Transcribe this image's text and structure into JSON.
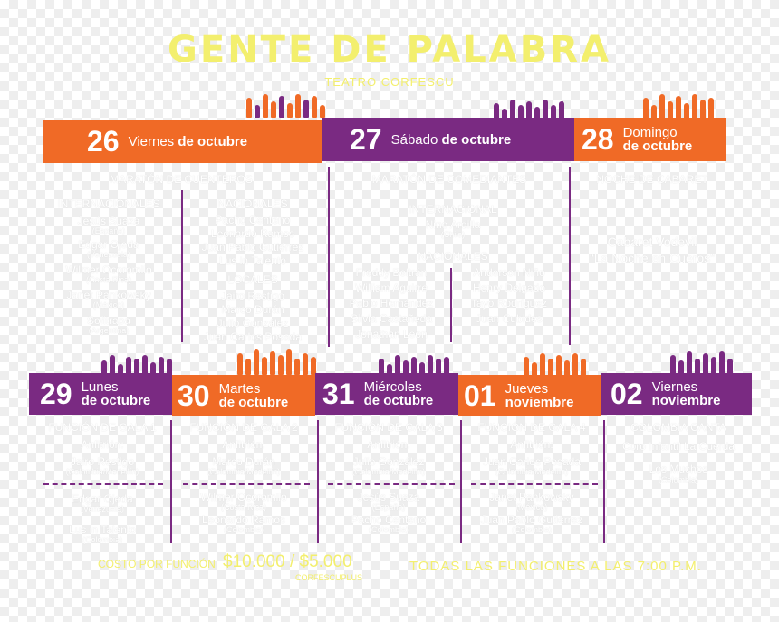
{
  "title": "GENTE DE PALABRA",
  "subtitle": "TEATRO CORFESCU",
  "banners": {
    "d26": {
      "num": "26",
      "weekday": "Viernes",
      "month": "de octubre"
    },
    "d27": {
      "num": "27",
      "weekday": "Sábado",
      "month": "de octubre"
    },
    "d28": {
      "num": "28",
      "weekday": "Domingo",
      "month": "de octubre"
    },
    "d29": {
      "num": "29",
      "weekday": "Lunes",
      "month": "de octubre"
    },
    "d30": {
      "num": "30",
      "weekday": "Martes",
      "month": "de octubre"
    },
    "d31": {
      "num": "31",
      "weekday": "Miércoles",
      "month": "de octubre"
    },
    "d01": {
      "num": "01",
      "weekday": "Jueves",
      "month": "noviembre"
    },
    "d02": {
      "num": "02",
      "weekday": "Viernes",
      "month": "noviembre"
    }
  },
  "day26": {
    "header": "MARATÓN DE CUENTEROS",
    "internacionales_label": "INTERNACIONALES",
    "internacionales": [
      {
        "name": "Jesús Suaza",
        "country": "(España)"
      },
      {
        "name": "Edgar Ojeda",
        "country": "(Venezuela)"
      },
      {
        "name": "Wilmer Ocoromilo",
        "country": "(Costa Rica)"
      },
      {
        "name": "Janet Pankowsky",
        "country": "(México)"
      },
      {
        "name": "Sofitrapa",
        "country": "(Argentina)"
      }
    ],
    "nacionales_label": "NACIONALES",
    "nacionales": [
      "Pacho Centeno",
      "Leonardo Ramos",
      "Juan Pablo Gutiérrez",
      "Lus in Talento"
    ],
    "locales_label": "LOCALES",
    "locales": [
      "Jairo Restigo",
      "Marco Durán",
      "Julio González",
      "Juan Carlos Posada"
    ]
  },
  "day27": {
    "header": "MARATÓN DE COMEDIANTES",
    "internacional_label": "INTERNACIONAL",
    "internacional": {
      "name": "Nino Ardilla",
      "country": "(Chile)"
    },
    "nacionales_label": "NACIONALES",
    "col1": [
      "Freddy Beltrán",
      "William Aguirre",
      "Pablo Hernández",
      "Silvia Castañeda",
      "Jonathan Leon"
    ],
    "col2": [
      "Anderson Niño",
      "Henry Delgado",
      "Tayo Rodríguez",
      "Juan Cubides"
    ]
  },
  "day28": {
    "header": "NOCHE DE CABARET",
    "line1": "Cabaret Vodevil",
    "line2": "“La Noche en Cueros”"
  },
  "day29": {
    "header": "FUNCIÓN DE GALA 1",
    "sub": "Anfitrión:",
    "host": {
      "name": "Jairo Restigo",
      "country": "(Colombia/Medellín)"
    },
    "p1": {
      "name": "Edgar Ojeda",
      "country": "(Venezuela)"
    },
    "p2": {
      "name": "Lus in Talento",
      "country": "(Colombia)"
    }
  },
  "day30": {
    "header": "FUNCIÓN DE GALA 2",
    "sub": "Anfitrión:",
    "host": {
      "name": "Marco Durán",
      "country": "(Colombia/Medellín)"
    },
    "p1": {
      "name": "Wilmer Ocoromilo",
      "country": "(Costa Rica)"
    },
    "p2": {
      "name": "Leonardo Ramos",
      "country": "(Colombia)"
    }
  },
  "day31": {
    "header": "FUNCIÓN DE GALA 3",
    "sub": "Anfitrión:",
    "host": {
      "name": "Julio González",
      "country": "(Colombia/Medellín)"
    },
    "p1": {
      "name": "Jesús Suaza",
      "country": "(España)"
    },
    "p2": {
      "name": "Pacho Centeno",
      "country": "(Colombia)"
    }
  },
  "day01": {
    "header": "FUNCIÓN DE GALA 4",
    "sub": "Anfitrión:",
    "host": {
      "name": "Juan Carlos Posada",
      "country": "(Colombia/Medellín)"
    },
    "p1": {
      "name": "Janet Pankowsky",
      "country": "(México)"
    },
    "p2": {
      "name": "Juan Pablo Gutiérrez",
      "country": "(Colombia)"
    }
  },
  "day02": {
    "header": "COLOMBIA CANTA",
    "line1": "Coro Infantil La Cuerda",
    "line2": "Los Muchos",
    "line3": "(Colombia)"
  },
  "footer": {
    "cost_label": "COSTO POR FUNCIÓN",
    "price": "$10.000 / $5.000",
    "cost_note": "CORFESCUPLUS",
    "times": "TODAS LAS FUNCIONES A LAS 7:00 P.M."
  },
  "colors": {
    "orange": "#f06a26",
    "purple": "#7a2a82",
    "yellow": "#f3ef6e"
  },
  "icons": {
    "decoration": "hands-silhouette-icon"
  }
}
